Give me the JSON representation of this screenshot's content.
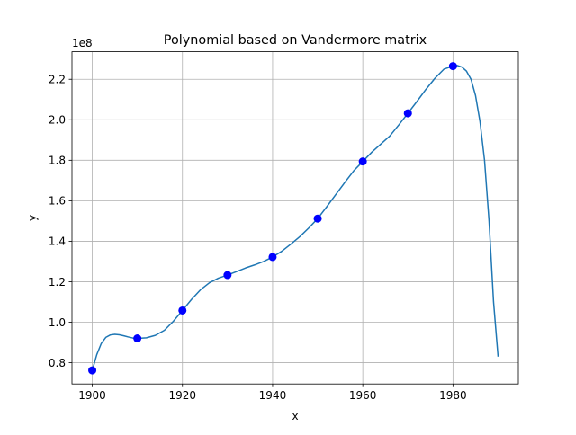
{
  "chart_data": {
    "type": "line",
    "title": "Polynomial based on Vandermore matrix",
    "xlabel": "x",
    "ylabel": "y",
    "y_multiplier": "1e8",
    "grid": true,
    "xlim": [
      1895.5,
      1994.5
    ],
    "ylim": [
      0.695,
      2.336
    ],
    "x_ticks": [
      1900,
      1920,
      1940,
      1960,
      1980
    ],
    "x_tick_labels": [
      "1900",
      "1920",
      "1940",
      "1960",
      "1980"
    ],
    "y_ticks": [
      0.8,
      1.0,
      1.2,
      1.4,
      1.6,
      1.8,
      2.0,
      2.2
    ],
    "y_tick_labels": [
      "0.8",
      "1.0",
      "1.2",
      "1.4",
      "1.6",
      "1.8",
      "2.0",
      "2.2"
    ],
    "series": [
      {
        "kind": "markers",
        "color": "#0000ff",
        "x": [
          1900,
          1910,
          1920,
          1930,
          1940,
          1950,
          1960,
          1970,
          1980
        ],
        "y": [
          0.762,
          0.92,
          1.058,
          1.233,
          1.322,
          1.512,
          1.794,
          2.032,
          2.265
        ]
      },
      {
        "kind": "curve",
        "color": "#1f77b4",
        "x": [
          1900,
          1901,
          1902,
          1903,
          1904,
          1905,
          1906,
          1907,
          1908,
          1909,
          1910,
          1912,
          1914,
          1916,
          1918,
          1920,
          1922,
          1924,
          1926,
          1928,
          1930,
          1932,
          1934,
          1936,
          1938,
          1940,
          1942,
          1944,
          1946,
          1948,
          1950,
          1952,
          1954,
          1956,
          1958,
          1960,
          1962,
          1964,
          1966,
          1968,
          1970,
          1972,
          1974,
          1976,
          1978,
          1980,
          1981,
          1982,
          1983,
          1984,
          1985,
          1986,
          1987,
          1988,
          1989,
          1990
        ],
        "y": [
          0.762,
          0.84,
          0.895,
          0.925,
          0.937,
          0.94,
          0.938,
          0.933,
          0.927,
          0.922,
          0.92,
          0.923,
          0.935,
          0.96,
          1.005,
          1.058,
          1.112,
          1.16,
          1.195,
          1.218,
          1.233,
          1.25,
          1.268,
          1.283,
          1.3,
          1.322,
          1.35,
          1.385,
          1.422,
          1.465,
          1.512,
          1.57,
          1.63,
          1.69,
          1.748,
          1.794,
          1.84,
          1.88,
          1.92,
          1.975,
          2.032,
          2.09,
          2.15,
          2.205,
          2.25,
          2.265,
          2.268,
          2.26,
          2.24,
          2.2,
          2.12,
          1.99,
          1.8,
          1.5,
          1.1,
          0.83
        ]
      }
    ]
  }
}
